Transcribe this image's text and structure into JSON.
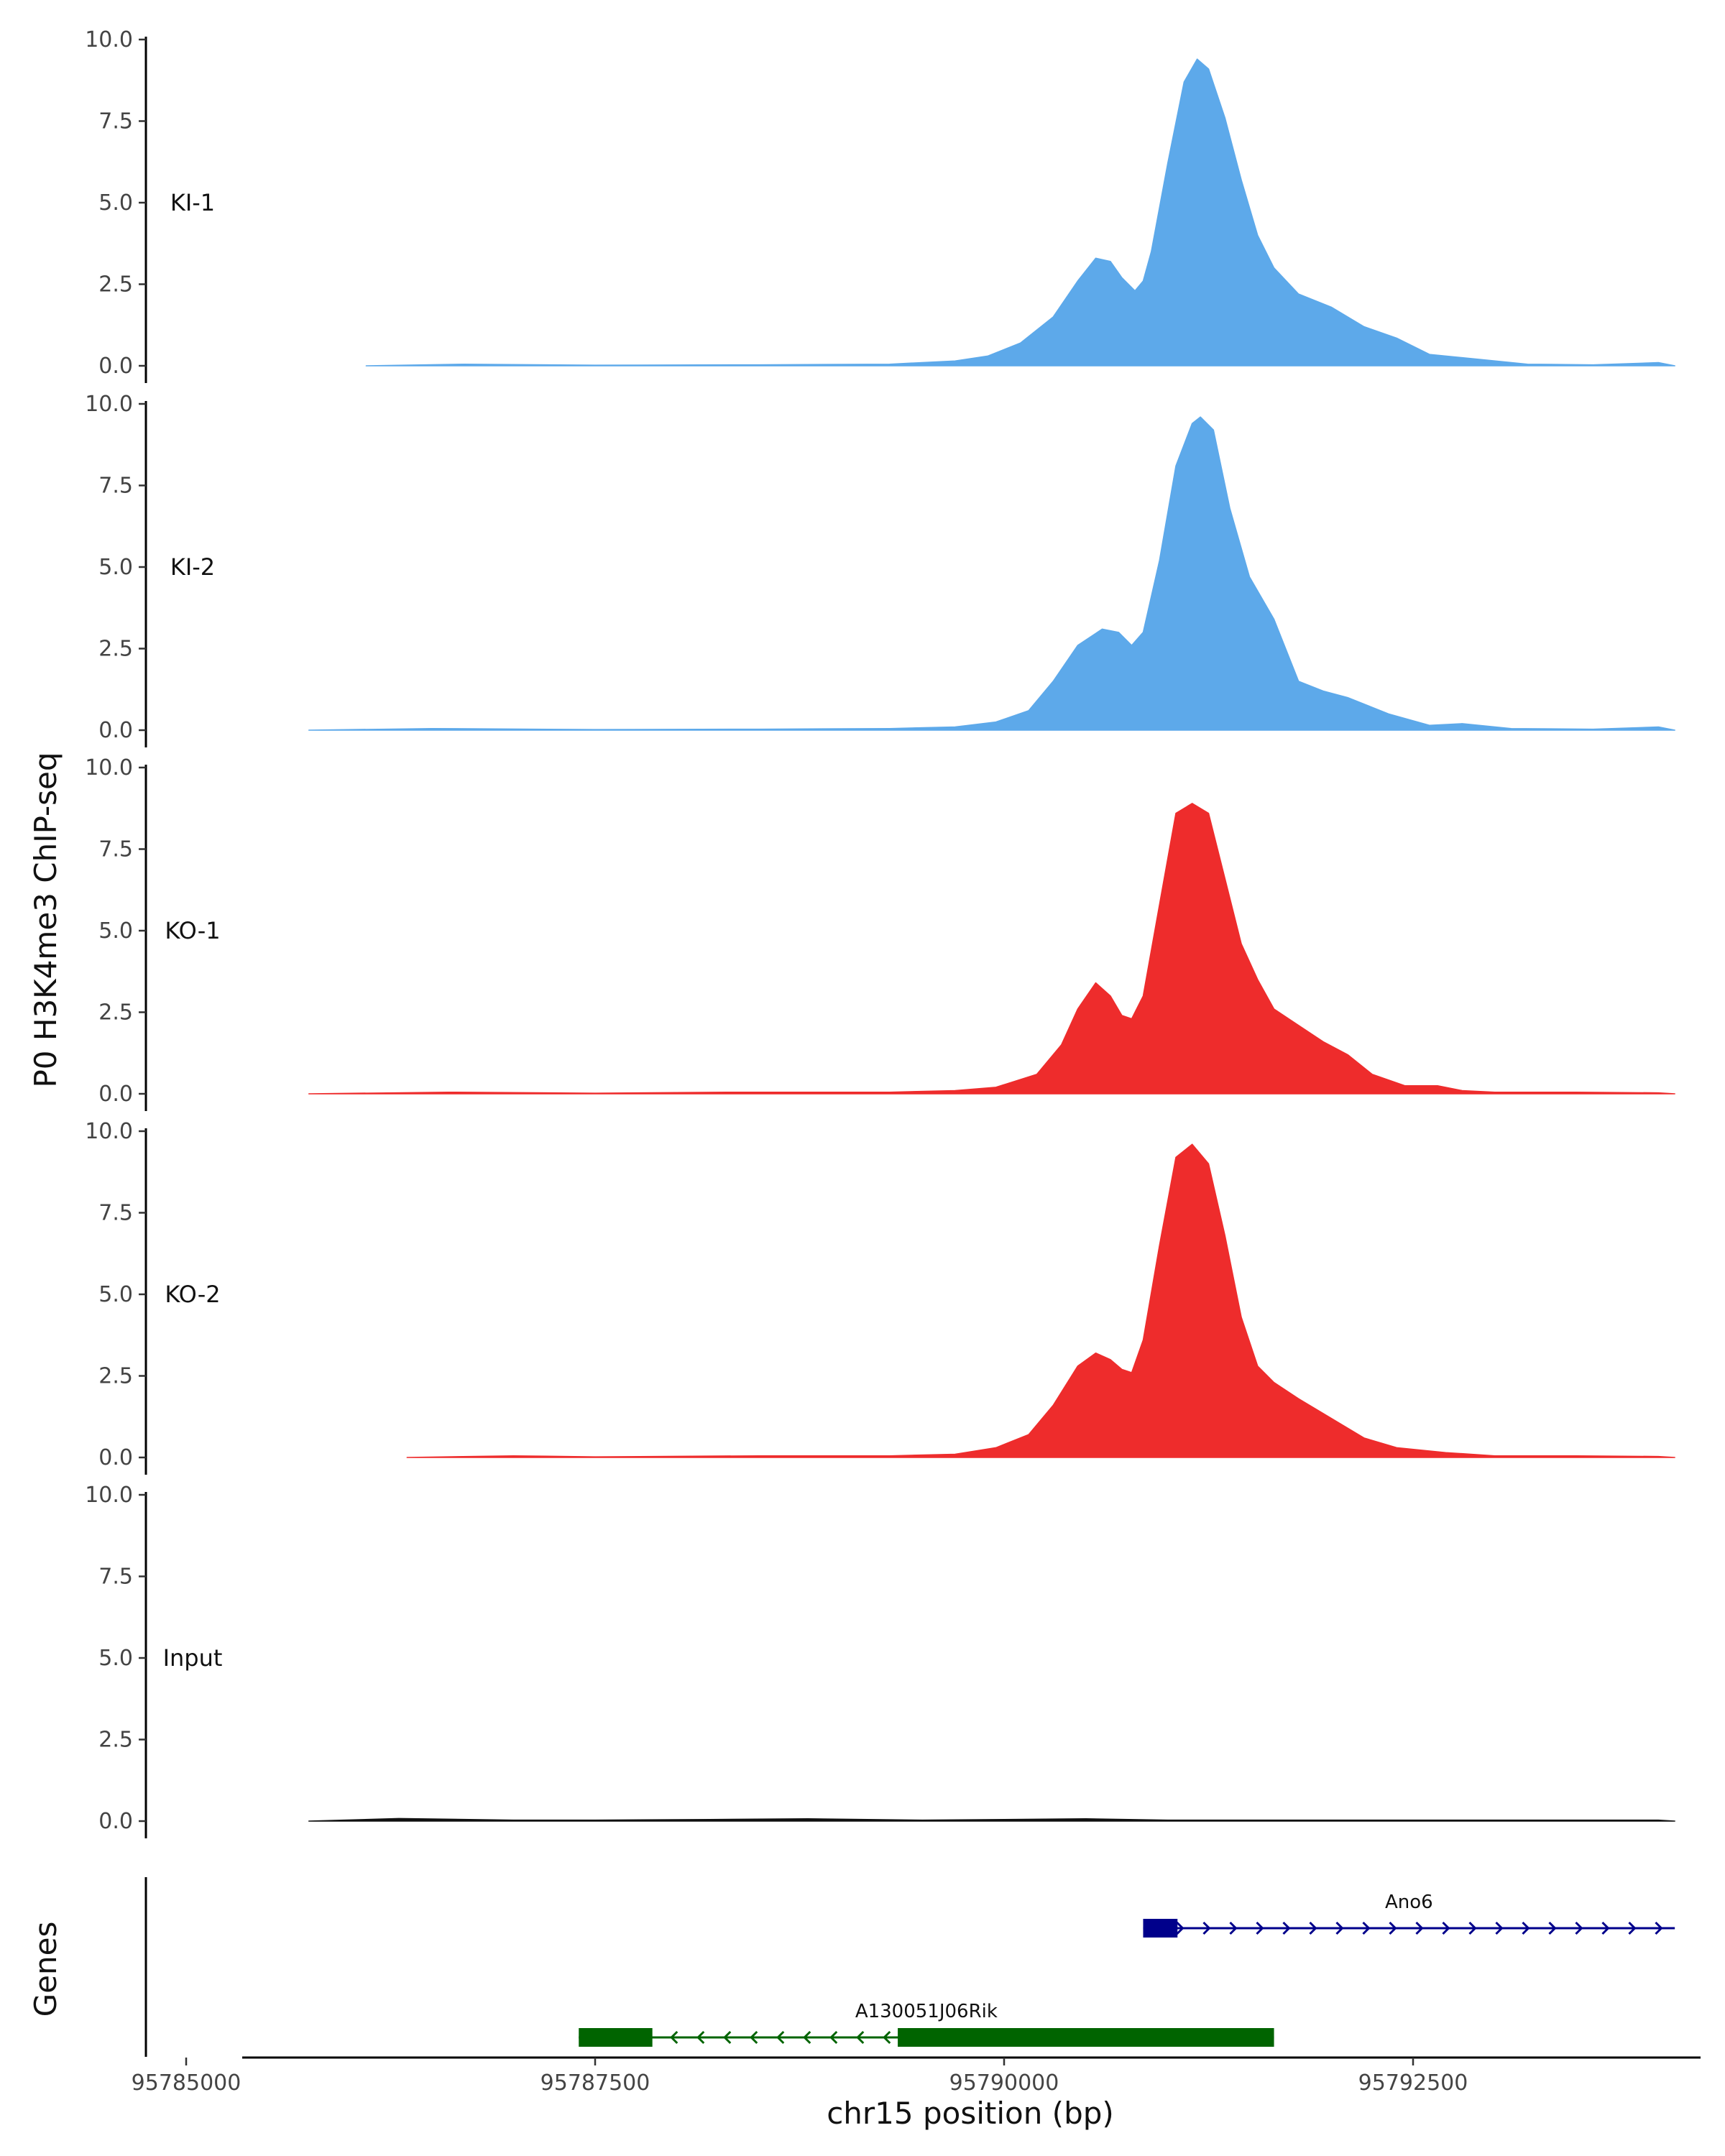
{
  "chart_data": {
    "type": "area",
    "y_axis_title": "P0 H3K4me3 ChIP-seq",
    "x_axis_title": "chr15 position (bp)",
    "genes_axis_title": "Genes",
    "ylim": [
      0,
      10
    ],
    "y_ticks": [
      0,
      2.5,
      5,
      7.5,
      10
    ],
    "y_tick_labels": [
      "0.0",
      "2.5",
      "5.0",
      "7.5",
      "10.0"
    ],
    "xlim": [
      95784600,
      95794100
    ],
    "x_ticks": [
      95785000,
      95787500,
      95790000,
      95792500
    ],
    "x_tick_labels": [
      "95785000",
      "95787500",
      "95790000",
      "95792500"
    ],
    "tracks": [
      {
        "name": "KI-1",
        "color": "#5DA9EA",
        "x": [
          95786100,
          95786700,
          95787500,
          95788500,
          95789300,
          95789700,
          95789900,
          95790100,
          95790300,
          95790450,
          95790560,
          95790650,
          95790720,
          95790800,
          95790850,
          95790900,
          95791000,
          95791100,
          95791180,
          95791250,
          95791350,
          95791450,
          95791550,
          95791650,
          95791800,
          95792000,
          95792200,
          95792400,
          95792600,
          95792900,
          95793200,
          95793600,
          95794000,
          95794100
        ],
        "values": [
          0,
          0.05,
          0.02,
          0.03,
          0.05,
          0.15,
          0.3,
          0.7,
          1.5,
          2.6,
          3.3,
          3.2,
          2.7,
          2.3,
          2.6,
          3.5,
          6.2,
          8.7,
          9.4,
          9.1,
          7.6,
          5.7,
          4.0,
          3.0,
          2.2,
          1.8,
          1.2,
          0.85,
          0.35,
          0.2,
          0.05,
          0.03,
          0.1,
          0
        ]
      },
      {
        "name": "KI-2",
        "color": "#5DA9EA",
        "x": [
          95785750,
          95786500,
          95787500,
          95788500,
          95789300,
          95789700,
          95789950,
          95790150,
          95790300,
          95790450,
          95790600,
          95790700,
          95790780,
          95790850,
          95790950,
          95791050,
          95791150,
          95791200,
          95791280,
          95791380,
          95791500,
          95791650,
          95791800,
          95791950,
          95792100,
          95792350,
          95792600,
          95792800,
          95793100,
          95793600,
          95794000,
          95794100
        ],
        "values": [
          0,
          0.05,
          0.02,
          0.03,
          0.05,
          0.1,
          0.25,
          0.6,
          1.5,
          2.6,
          3.1,
          3.0,
          2.6,
          3.0,
          5.2,
          8.1,
          9.4,
          9.6,
          9.2,
          6.8,
          4.7,
          3.4,
          1.5,
          1.2,
          1.0,
          0.5,
          0.15,
          0.2,
          0.05,
          0.03,
          0.1,
          0
        ]
      },
      {
        "name": "KO-1",
        "color": "#EE2C2C",
        "x": [
          95785750,
          95786600,
          95787500,
          95788300,
          95789300,
          95789700,
          95789950,
          95790200,
          95790350,
          95790450,
          95790560,
          95790650,
          95790720,
          95790780,
          95790850,
          95790950,
          95791050,
          95791150,
          95791250,
          95791350,
          95791450,
          95791550,
          95791650,
          95791800,
          95791950,
          95792100,
          95792250,
          95792450,
          95792650,
          95792800,
          95793000,
          95793500,
          95794000,
          95794100
        ],
        "values": [
          0,
          0.05,
          0.02,
          0.05,
          0.05,
          0.1,
          0.2,
          0.6,
          1.5,
          2.6,
          3.4,
          3.0,
          2.4,
          2.3,
          3.0,
          5.8,
          8.6,
          8.9,
          8.6,
          6.6,
          4.6,
          3.5,
          2.6,
          2.1,
          1.6,
          1.2,
          0.6,
          0.25,
          0.25,
          0.1,
          0.05,
          0.05,
          0.03,
          0
        ]
      },
      {
        "name": "KO-2",
        "color": "#EE2C2C",
        "x": [
          95786350,
          95787000,
          95787500,
          95788500,
          95789300,
          95789700,
          95789950,
          95790150,
          95790300,
          95790450,
          95790560,
          95790650,
          95790720,
          95790780,
          95790850,
          95790950,
          95791050,
          95791150,
          95791250,
          95791350,
          95791450,
          95791550,
          95791650,
          95791800,
          95792000,
          95792200,
          95792400,
          95792700,
          95793000,
          95793500,
          95794000,
          95794100
        ],
        "values": [
          0,
          0.05,
          0.02,
          0.05,
          0.05,
          0.1,
          0.3,
          0.7,
          1.6,
          2.8,
          3.2,
          3.0,
          2.7,
          2.6,
          3.6,
          6.5,
          9.2,
          9.6,
          9.0,
          6.8,
          4.3,
          2.8,
          2.3,
          1.8,
          1.2,
          0.6,
          0.3,
          0.15,
          0.05,
          0.05,
          0.03,
          0
        ]
      },
      {
        "name": "Input",
        "color": "#111111",
        "x": [
          95785750,
          95786300,
          95787000,
          95787500,
          95788200,
          95788800,
          95789500,
          95790000,
          95790500,
          95791000,
          95791800,
          95792500,
          95793200,
          95794000,
          95794100
        ],
        "values": [
          0,
          0.08,
          0.03,
          0.03,
          0.05,
          0.07,
          0.03,
          0.05,
          0.07,
          0.03,
          0.03,
          0.03,
          0.03,
          0.03,
          0
        ]
      }
    ],
    "genes": [
      {
        "name": "Ano6",
        "strand": "+",
        "color": "#00008B",
        "start": 95790850,
        "end": 95794100,
        "exons": [
          [
            95790850,
            95791060
          ]
        ]
      },
      {
        "name": "A130051J06Rik",
        "strand": "-",
        "color": "#006400",
        "start": 95787400,
        "end": 95791650,
        "exons": [
          [
            95787400,
            95787850
          ],
          [
            95789350,
            95791650
          ]
        ]
      }
    ]
  }
}
